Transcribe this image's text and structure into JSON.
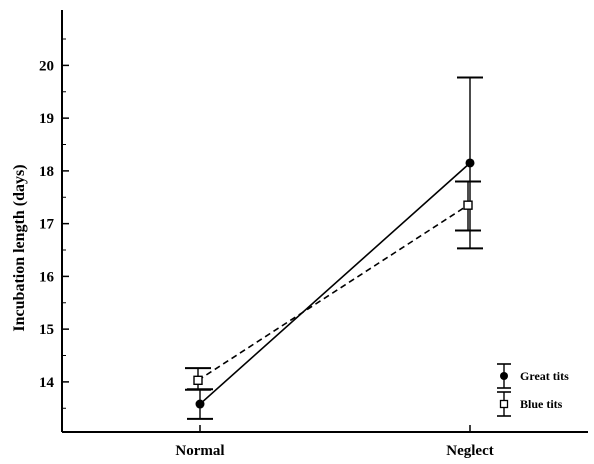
{
  "chart_data": {
    "type": "line",
    "title": "",
    "xlabel": "",
    "ylabel": "Incubation length (days)",
    "categories": [
      "Normal",
      "Neglect"
    ],
    "ylim": [
      13.05,
      21.05
    ],
    "yticks": [
      14,
      15,
      16,
      17,
      18,
      19,
      20
    ],
    "grid": false,
    "legend_position": "bottom-right",
    "series": [
      {
        "name": "Great tits",
        "marker": "filled-circle",
        "line_style": "solid",
        "values": [
          13.58,
          18.15
        ],
        "error_low": [
          13.3,
          16.53
        ],
        "error_high": [
          13.86,
          19.77
        ]
      },
      {
        "name": "Blue tits",
        "marker": "open-square",
        "line_style": "dashed",
        "values": [
          14.03,
          17.35
        ],
        "error_low": [
          13.85,
          16.87
        ],
        "error_high": [
          14.26,
          17.8
        ]
      }
    ]
  }
}
